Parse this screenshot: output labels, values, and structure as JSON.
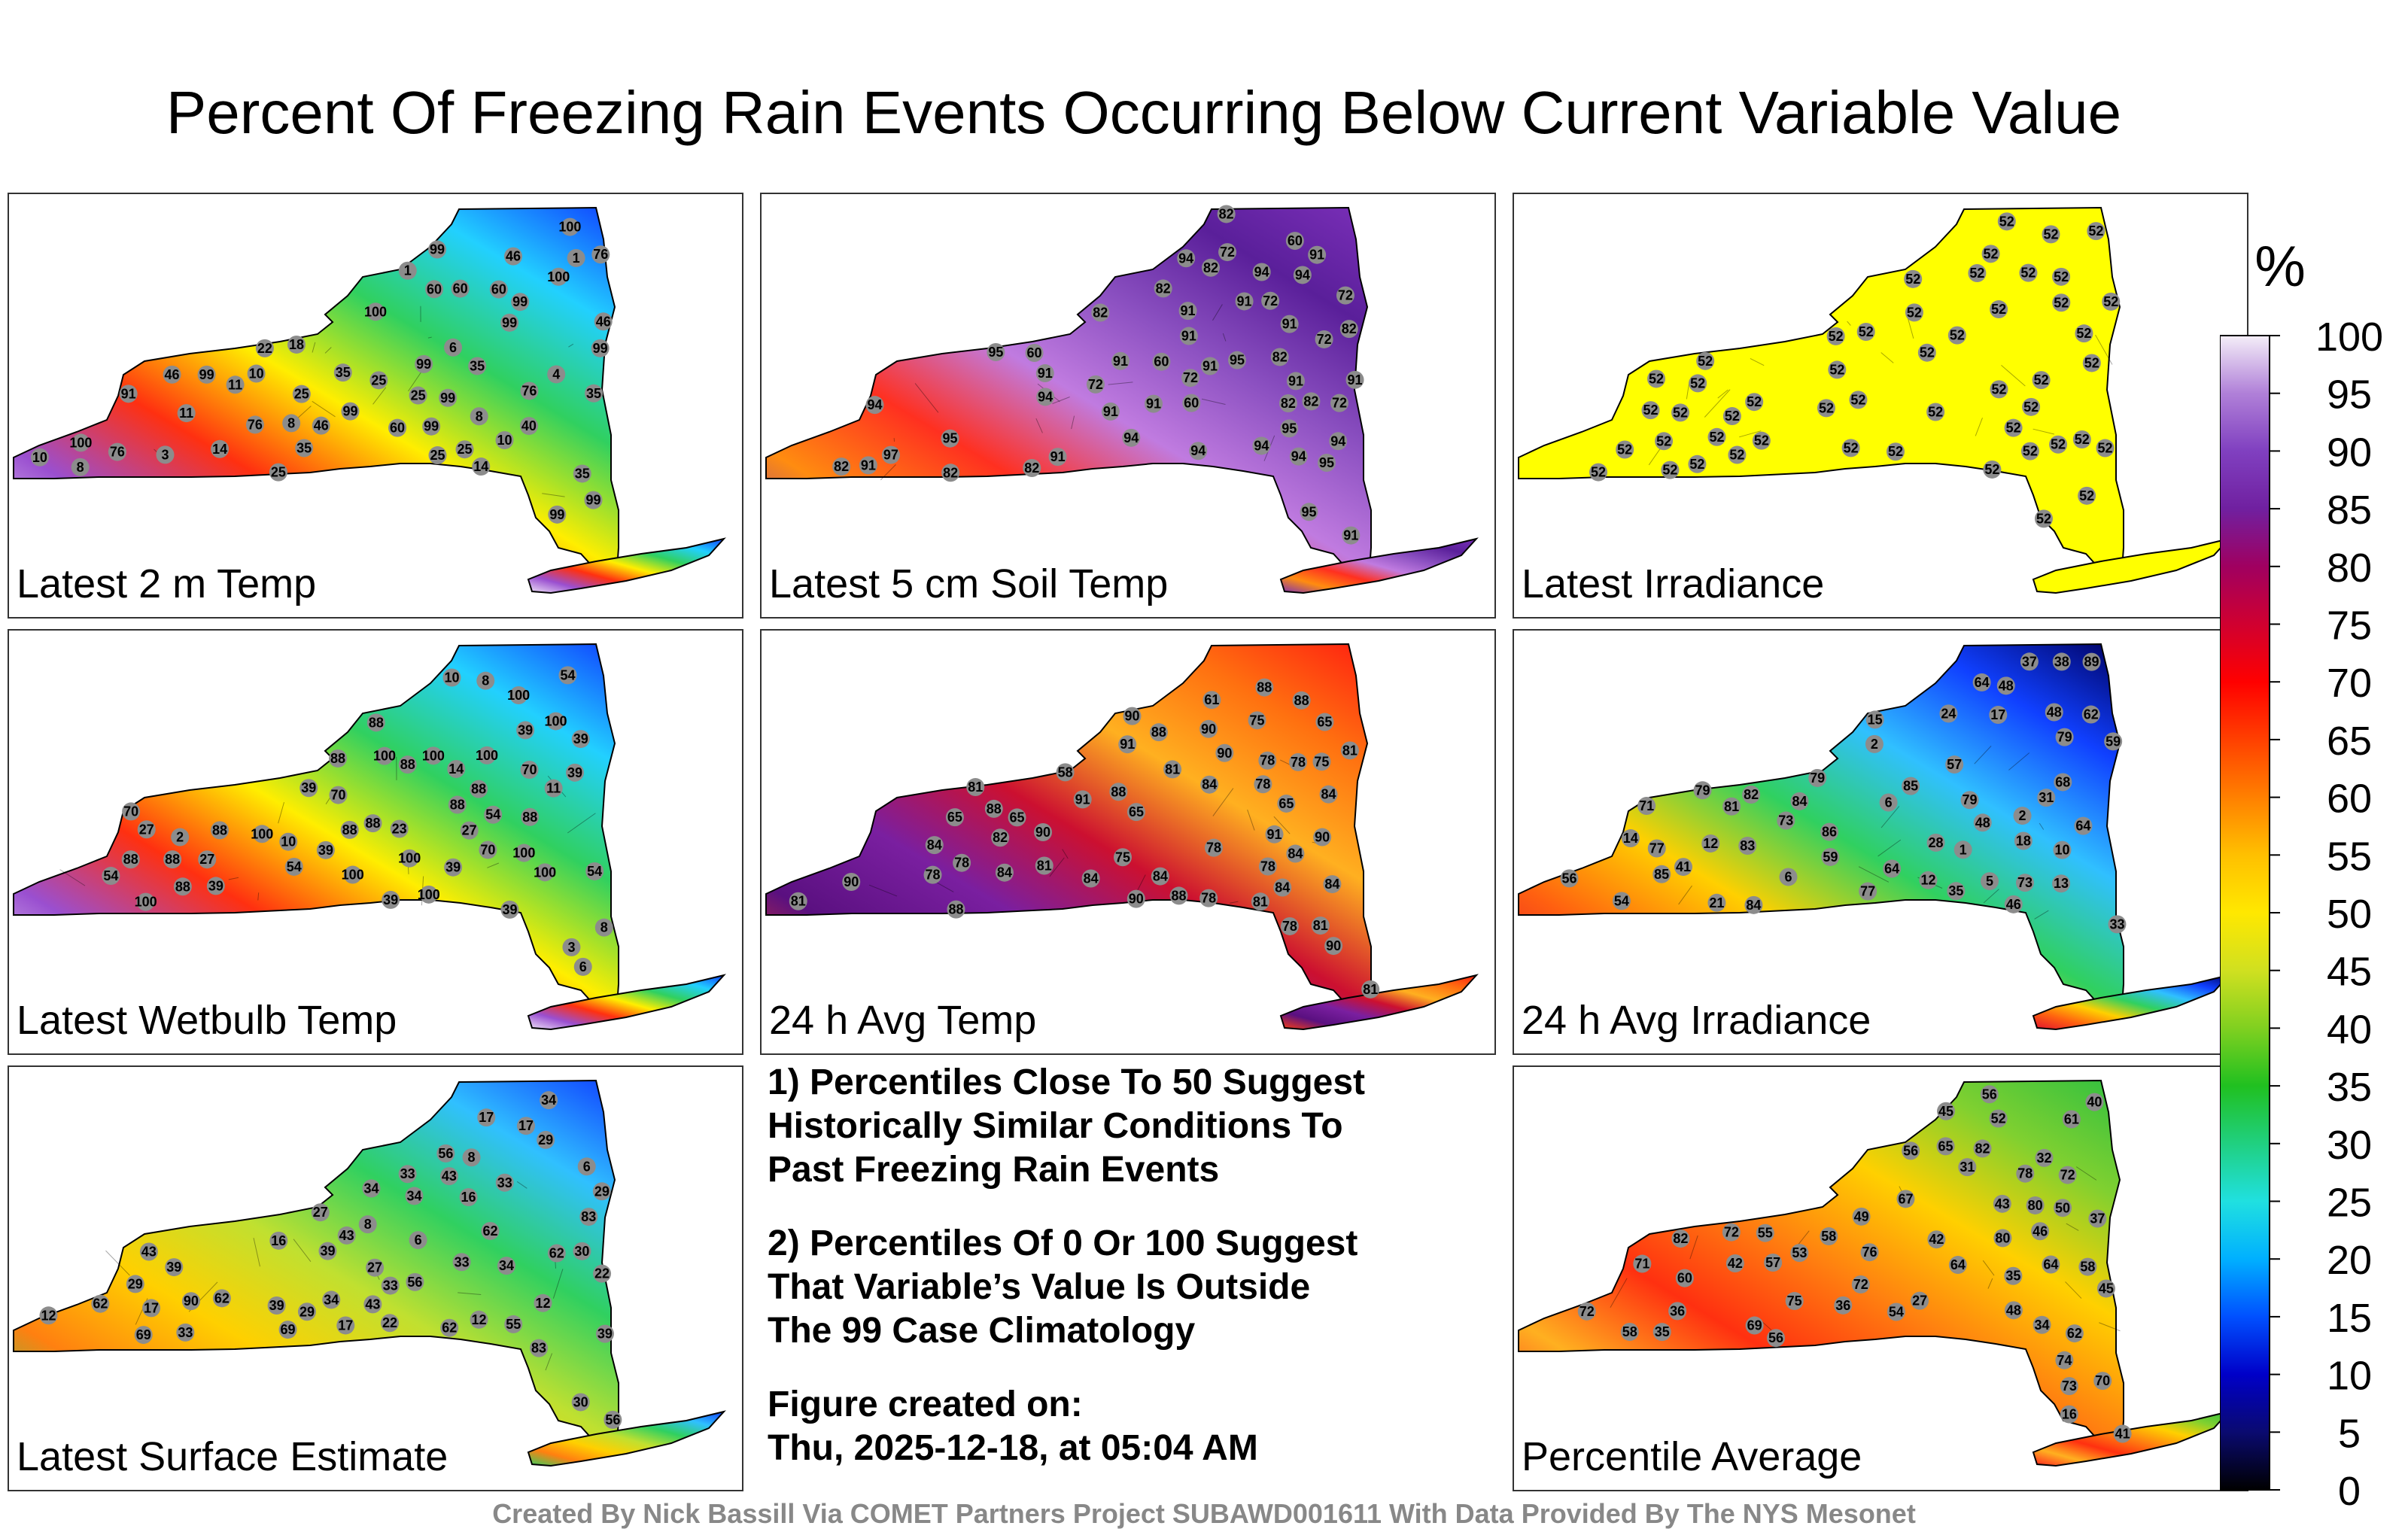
{
  "title": "Percent Of Freezing Rain Events Occurring Below Current Variable Value",
  "panels": [
    {
      "label": "Latest 2 m Temp",
      "colors": [
        "#1040ff",
        "#22d0ff",
        "#30d060",
        "#ffee00",
        "#ff3010",
        "#9a4fd0",
        "#f0e6f8"
      ],
      "stations": [
        "4",
        "10",
        "8",
        "25",
        "14",
        "1",
        "60",
        "76",
        "99",
        "100",
        "35",
        "18",
        "8",
        "99",
        "11",
        "46",
        "99",
        "35",
        "46",
        "25",
        "60",
        "99",
        "91",
        "76",
        "99",
        "60",
        "35",
        "100",
        "25",
        "8",
        "46",
        "35",
        "76",
        "46",
        "40",
        "25",
        "10",
        "99",
        "99",
        "100",
        "3",
        "35",
        "14",
        "99",
        "76",
        "25",
        "100",
        "1",
        "6",
        "22",
        "60",
        "11",
        "99",
        "10",
        "99",
        "99",
        "25"
      ]
    },
    {
      "label": "Latest 5 cm Soil Temp",
      "colors": [
        "#7a2fb8",
        "#5a1f9a",
        "#8a4fc0",
        "#c07be0",
        "#ff3020",
        "#ff8c10",
        "#7a2fb8"
      ],
      "stations": [
        "82",
        "91",
        "94",
        "72",
        "91",
        "97",
        "82",
        "94",
        "82",
        "95",
        "91",
        "94",
        "82",
        "91",
        "94",
        "60",
        "72",
        "91",
        "95",
        "82",
        "91",
        "72",
        "94",
        "91",
        "82",
        "94",
        "95",
        "91",
        "60",
        "91",
        "72",
        "82",
        "94",
        "91",
        "95",
        "72",
        "91",
        "60",
        "82",
        "91",
        "72",
        "94",
        "95",
        "82",
        "60",
        "91",
        "72",
        "94",
        "91",
        "82",
        "95",
        "91",
        "94",
        "82"
      ]
    },
    {
      "label": "Latest Irradiance",
      "colors": [
        "#ffff00",
        "#ffff00",
        "#ffff00",
        "#ffff00",
        "#ffff00",
        "#ffff00",
        "#ffff00"
      ],
      "stations": [
        "52",
        "52",
        "52",
        "52",
        "52",
        "52",
        "52",
        "52",
        "52",
        "52",
        "52",
        "52",
        "52",
        "52",
        "52",
        "52",
        "52",
        "52",
        "52",
        "52",
        "52",
        "52",
        "52",
        "52",
        "52",
        "52",
        "52",
        "52",
        "52",
        "52",
        "52",
        "52",
        "52",
        "52",
        "52",
        "52",
        "52",
        "52",
        "52",
        "52",
        "52",
        "52",
        "52",
        "52",
        "52",
        "52",
        "52",
        "52",
        "52",
        "52"
      ]
    },
    {
      "label": "Latest Wetbulb Temp",
      "colors": [
        "#1040ff",
        "#22d0ff",
        "#30d060",
        "#ffee00",
        "#ff3010",
        "#9a4fd0",
        "#f0e6f8"
      ],
      "stations": [
        "3",
        "10",
        "8",
        "14",
        "70",
        "88",
        "100",
        "39",
        "11",
        "54",
        "88",
        "100",
        "27",
        "39",
        "88",
        "100",
        "54",
        "39",
        "88",
        "100",
        "88",
        "100",
        "70",
        "54",
        "39",
        "88",
        "100",
        "27",
        "88",
        "54",
        "39",
        "100",
        "70",
        "88",
        "23",
        "39",
        "100",
        "8",
        "6",
        "2",
        "100",
        "39",
        "88",
        "10",
        "100",
        "54",
        "88",
        "39",
        "100",
        "70",
        "27",
        "88",
        "39",
        "100",
        "88"
      ]
    },
    {
      "label": "24 h Avg Temp",
      "colors": [
        "#ff2010",
        "#ff7010",
        "#ffb020",
        "#cc1030",
        "#7a1fa0",
        "#5a1080",
        "#ff4010"
      ],
      "stations": [
        "78",
        "78",
        "78",
        "88",
        "81",
        "75",
        "65",
        "90",
        "84",
        "78",
        "58",
        "65",
        "90",
        "84",
        "75",
        "65",
        "61",
        "90",
        "91",
        "82",
        "81",
        "84",
        "90",
        "88",
        "78",
        "84",
        "81",
        "75",
        "88",
        "90",
        "91",
        "84",
        "78",
        "81",
        "88",
        "65",
        "84",
        "90",
        "81",
        "78",
        "84",
        "88",
        "91",
        "90",
        "81",
        "84",
        "78",
        "88",
        "65",
        "81",
        "84",
        "90",
        "78",
        "88",
        "81"
      ]
    },
    {
      "label": "24 h Avg Irradiance",
      "colors": [
        "#000060",
        "#1040ff",
        "#30c0ff",
        "#30d060",
        "#ffd000",
        "#ff6010",
        "#e01030"
      ],
      "stations": [
        "2",
        "6",
        "10",
        "12",
        "13",
        "5",
        "2",
        "38",
        "21",
        "18",
        "1",
        "15",
        "6",
        "14",
        "37",
        "28",
        "31",
        "48",
        "24",
        "35",
        "46",
        "64",
        "57",
        "48",
        "68",
        "73",
        "85",
        "59",
        "64",
        "79",
        "89",
        "85",
        "64",
        "79",
        "56",
        "77",
        "82",
        "83",
        "79",
        "48",
        "84",
        "79",
        "77",
        "86",
        "84",
        "73",
        "71",
        "59",
        "62",
        "81",
        "41",
        "54",
        "33",
        "12",
        "17"
      ]
    },
    {
      "label": "Latest Surface Estimate",
      "colors": [
        "#1040ff",
        "#30c0ff",
        "#30d060",
        "#c0e030",
        "#ffd000",
        "#ff8010",
        "#30d060"
      ],
      "stations": [
        "6",
        "16",
        "6",
        "12",
        "62",
        "39",
        "27",
        "90",
        "55",
        "17",
        "16",
        "8",
        "27",
        "62",
        "29",
        "34",
        "33",
        "22",
        "56",
        "39",
        "83",
        "34",
        "69",
        "43",
        "33",
        "30",
        "12",
        "62",
        "43",
        "34",
        "29",
        "56",
        "8",
        "17",
        "33",
        "43",
        "39",
        "34",
        "22",
        "29",
        "83",
        "62",
        "30",
        "17",
        "56",
        "43",
        "33",
        "69",
        "39",
        "12",
        "34",
        "29",
        "17",
        "62",
        "33"
      ]
    },
    {
      "label": "Percentile Average",
      "colors": [
        "#30c040",
        "#80d030",
        "#ffd000",
        "#ff8010",
        "#ff3010",
        "#ffb020",
        "#ff2020"
      ],
      "stations": [
        "32",
        "37",
        "36",
        "35",
        "45",
        "27",
        "56",
        "70",
        "72",
        "36",
        "31",
        "43",
        "72",
        "62",
        "42",
        "16",
        "41",
        "35",
        "40",
        "34",
        "76",
        "75",
        "71",
        "73",
        "72",
        "58",
        "57",
        "56",
        "65",
        "74",
        "80",
        "69",
        "67",
        "58",
        "64",
        "49",
        "82",
        "61",
        "64",
        "60",
        "72",
        "52",
        "54",
        "45",
        "42",
        "56",
        "53",
        "50",
        "46",
        "55",
        "48",
        "82",
        "80",
        "78",
        "58"
      ]
    }
  ],
  "notes": {
    "note1": "1) Percentiles Close To 50 Suggest\nHistorically Similar Conditions To\nPast Freezing Rain Events",
    "note2": "2) Percentiles Of 0 Or 100 Suggest\nThat Variable’s Value Is Outside\nThe 99 Case Climatology",
    "created": "Figure created on:\nThu, 2025-12-18, at 05:04 AM"
  },
  "footer": "Created By Nick Bassill Via COMET Partners Project SUBAWD001611 With Data Provided By The NYS Mesonet",
  "chart_data": {
    "type": "heatmap",
    "title": "Percent Of Freezing Rain Events Occurring Below Current Variable Value",
    "colorbar": {
      "unit": "%",
      "range": [
        0,
        100
      ],
      "ticks": [
        "0",
        "5",
        "10",
        "15",
        "20",
        "25",
        "30",
        "35",
        "40",
        "45",
        "50",
        "55",
        "60",
        "65",
        "70",
        "75",
        "80",
        "85",
        "90",
        "95",
        "100"
      ],
      "stops": [
        "#000000",
        "#0a0a70",
        "#0000c8",
        "#0050ff",
        "#00b0ff",
        "#20e0e0",
        "#20d080",
        "#20c020",
        "#80d020",
        "#d0e020",
        "#ffe800",
        "#ffc000",
        "#ff8000",
        "#ff4000",
        "#ff0000",
        "#d00030",
        "#a00060",
        "#7020a0",
        "#8040c0",
        "#b080d8",
        "#f4eef8"
      ]
    }
  }
}
